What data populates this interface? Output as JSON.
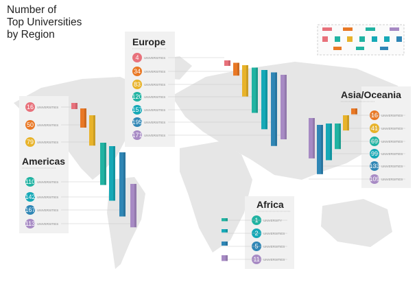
{
  "title_lines": [
    "Number of",
    "Top Universities",
    "by Region"
  ],
  "colors": {
    "c_pink": "#e8717b",
    "c_orange": "#e97825",
    "c_yellow": "#e8b32a",
    "c_teal": "#21b3a2",
    "c_cyan": "#16a9b7",
    "c_blue": "#2f86b5",
    "c_purple": "#a78ac4",
    "panel": "#f1f1f1",
    "map": "#e6e6e6"
  },
  "legend_swatches": [
    "c_pink",
    "c_yellow",
    "c_teal",
    "c_purple",
    "c_orange",
    "c_cyan",
    "c_blue"
  ],
  "chart_data": {
    "type": "bar",
    "title": "Number of Top Universities by Region",
    "regions": [
      {
        "name": "Europe",
        "unit": "UNIVERSITIES",
        "values": [
          4,
          34,
          83,
          120,
          157,
          195,
          171
        ],
        "colors": [
          "c_pink",
          "c_orange",
          "c_yellow",
          "c_teal",
          "c_cyan",
          "c_blue",
          "c_purple"
        ]
      },
      {
        "name": "Americas",
        "unit": "UNIVERSITIES",
        "values": [
          16,
          50,
          79,
          110,
          142,
          167,
          113
        ],
        "colors": [
          "c_pink",
          "c_orange",
          "c_yellow",
          "c_teal",
          "c_cyan",
          "c_blue",
          "c_purple"
        ]
      },
      {
        "name": "Asia/Oceania",
        "unit": "UNIVERSITIES",
        "values": [
          16,
          41,
          69,
          99,
          133,
          109
        ],
        "colors": [
          "c_orange",
          "c_yellow",
          "c_teal",
          "c_cyan",
          "c_blue",
          "c_purple"
        ]
      },
      {
        "name": "Africa",
        "unit_first": "UNIVERSITY",
        "unit": "UNIVERSITIES",
        "values": [
          1,
          2,
          5,
          11
        ],
        "colors": [
          "c_teal",
          "c_cyan",
          "c_blue",
          "c_purple"
        ]
      }
    ]
  }
}
